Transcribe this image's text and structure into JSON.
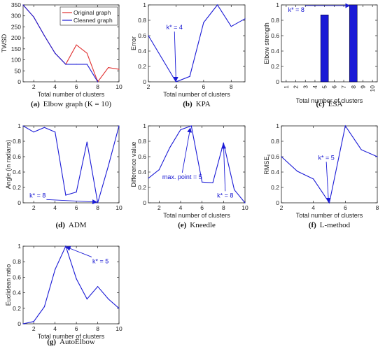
{
  "colors": {
    "blue": "#1a1ad6",
    "red": "#e03030",
    "axis": "#222222",
    "bar": "#1a1ad6"
  },
  "chart_data": [
    {
      "id": "a",
      "type": "line",
      "caption_letter": "(a)",
      "caption_text": "Elbow graph (K = 10)",
      "xlabel": "Total number of clusters",
      "ylabel": "TWSD",
      "xlim": [
        1,
        10
      ],
      "ylim": [
        0,
        350
      ],
      "xticks": [
        2,
        4,
        6,
        8,
        10
      ],
      "yticks": [
        0,
        50,
        100,
        150,
        200,
        250,
        300,
        350
      ],
      "legend": {
        "placement": "top-right"
      },
      "series": [
        {
          "name": "Original graph",
          "color": "red",
          "x": [
            1,
            2,
            3,
            4,
            5,
            6,
            7,
            8,
            9,
            10
          ],
          "y": [
            350,
            295,
            210,
            130,
            80,
            168,
            130,
            0,
            65,
            57
          ]
        },
        {
          "name": "Cleaned graph",
          "color": "blue",
          "x": [
            1,
            2,
            3,
            4,
            5,
            6,
            7,
            8
          ],
          "y": [
            350,
            295,
            210,
            130,
            80,
            80,
            80,
            0
          ]
        }
      ],
      "annotations": []
    },
    {
      "id": "b",
      "type": "line",
      "caption_letter": "(b)",
      "caption_text": "KPA",
      "xlabel": "Total number of clusters",
      "ylabel": "Error",
      "xlim": [
        2,
        9
      ],
      "ylim": [
        0,
        1
      ],
      "xticks": [
        2,
        4,
        6,
        8
      ],
      "yticks": [
        0,
        0.2,
        0.4,
        0.6,
        0.8,
        1
      ],
      "series": [
        {
          "name": "",
          "color": "blue",
          "x": [
            2,
            3,
            4,
            5,
            6,
            7,
            8,
            9
          ],
          "y": [
            0.6,
            0.3,
            0,
            0.07,
            0.77,
            1,
            0.72,
            0.82
          ]
        }
      ],
      "annotations": [
        {
          "text": "k* = 4",
          "tx": 3.3,
          "ty": 0.68,
          "ax": 4,
          "ay": 0.01
        }
      ]
    },
    {
      "id": "c",
      "type": "bar",
      "caption_letter": "(c)",
      "caption_text": "ESA",
      "xlabel": "Total number of clusters",
      "ylabel": "Elbow strength",
      "xlim": [
        0.5,
        10.5
      ],
      "ylim": [
        0,
        1
      ],
      "xticks": [
        1,
        2,
        3,
        4,
        5,
        6,
        7,
        8,
        9,
        10
      ],
      "yticks": [
        0,
        0.2,
        0.4,
        0.6,
        0.8,
        1
      ],
      "categories": [
        1,
        2,
        3,
        4,
        5,
        6,
        7,
        8,
        9,
        10
      ],
      "values": [
        0,
        0,
        0,
        0,
        0.87,
        0,
        0,
        1,
        0,
        0
      ],
      "annotations": [
        {
          "text": "k* = 8",
          "tx": 1.2,
          "ty": 0.91,
          "ax": 7.6,
          "ay": 0.99
        }
      ]
    },
    {
      "id": "d",
      "type": "line",
      "caption_letter": "(d)",
      "caption_text": "ADM",
      "xlabel": "",
      "ylabel": "Angle (in radians)",
      "xlim": [
        1,
        10
      ],
      "ylim": [
        0,
        1
      ],
      "xticks": [
        2,
        4,
        6,
        8,
        10
      ],
      "yticks": [
        0,
        0.2,
        0.4,
        0.6,
        0.8,
        1
      ],
      "series": [
        {
          "name": "",
          "color": "blue",
          "x": [
            1,
            2,
            3,
            4,
            5,
            6,
            7,
            8,
            9,
            10
          ],
          "y": [
            1,
            0.92,
            0.98,
            0.92,
            0.1,
            0.14,
            0.79,
            0,
            0.48,
            1
          ]
        }
      ],
      "annotations": [
        {
          "text": "k* = 8",
          "tx": 1.6,
          "ty": 0.07,
          "ax": 7.9,
          "ay": 0.01
        }
      ]
    },
    {
      "id": "e",
      "type": "line",
      "caption_letter": "(e)",
      "caption_text": "Kneedle",
      "xlabel": "Total number of clusters",
      "ylabel": "Difference value",
      "xlim": [
        1,
        10
      ],
      "ylim": [
        0,
        1
      ],
      "xticks": [
        2,
        4,
        6,
        8,
        10
      ],
      "yticks": [
        0,
        0.2,
        0.4,
        0.6,
        0.8,
        1
      ],
      "series": [
        {
          "name": "",
          "color": "blue",
          "x": [
            1,
            2,
            3,
            4,
            5,
            6,
            7,
            8,
            9,
            10
          ],
          "y": [
            0.32,
            0.43,
            0.72,
            0.95,
            1,
            0.27,
            0.26,
            0.78,
            0.17,
            0
          ]
        }
      ],
      "annotations": [
        {
          "text": "max. point = 5",
          "tx": 2.3,
          "ty": 0.31,
          "ax": 4.9,
          "ay": 0.97
        },
        {
          "text": "k* = 8",
          "tx": 7.4,
          "ty": 0.07,
          "ax": 8,
          "ay": 0.76
        }
      ]
    },
    {
      "id": "f",
      "type": "line",
      "caption_letter": "(f)",
      "caption_text": "L-method",
      "xlabel": "Total number of clusters",
      "ylabel": "RMSE",
      "ylabel_sub": "c",
      "xlim": [
        2,
        8
      ],
      "ylim": [
        0,
        1
      ],
      "xticks": [
        2,
        4,
        6,
        8
      ],
      "yticks": [
        0,
        0.2,
        0.4,
        0.6,
        0.8,
        1
      ],
      "series": [
        {
          "name": "",
          "color": "blue",
          "x": [
            2,
            3,
            4,
            5,
            6,
            7,
            8
          ],
          "y": [
            0.6,
            0.41,
            0.31,
            0,
            1,
            0.69,
            0.6
          ]
        }
      ],
      "annotations": [
        {
          "text": "k* = 5",
          "tx": 4.3,
          "ty": 0.56,
          "ax": 4.95,
          "ay": 0.01
        }
      ]
    },
    {
      "id": "g",
      "type": "line",
      "caption_letter": "(g)",
      "caption_text": "AutoElbow",
      "xlabel": "Total number of clusters",
      "ylabel": "Euclidean ratio",
      "xlim": [
        1,
        10
      ],
      "ylim": [
        0,
        1
      ],
      "xticks": [
        2,
        4,
        6,
        8,
        10
      ],
      "yticks": [
        0,
        0.2,
        0.4,
        0.6,
        0.8,
        1
      ],
      "series": [
        {
          "name": "",
          "color": "blue",
          "x": [
            1,
            2,
            3,
            4,
            5,
            6,
            7,
            8,
            9,
            10
          ],
          "y": [
            0,
            0.03,
            0.22,
            0.7,
            1,
            0.58,
            0.32,
            0.48,
            0.32,
            0.2
          ]
        }
      ],
      "annotations": [
        {
          "text": "k* = 5",
          "tx": 7.5,
          "ty": 0.78,
          "ax": 5.05,
          "ay": 0.99
        }
      ]
    }
  ]
}
